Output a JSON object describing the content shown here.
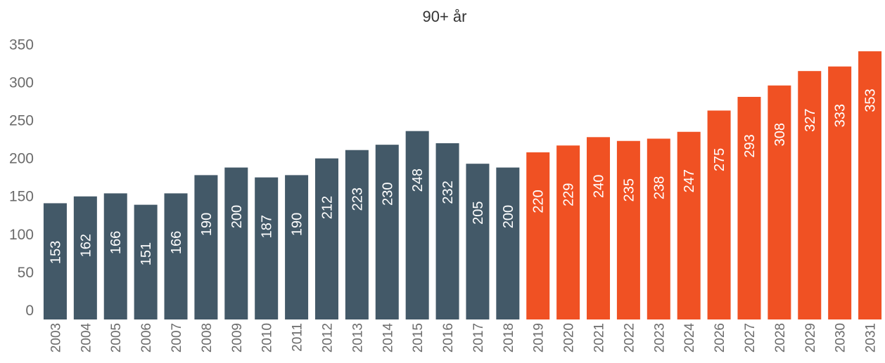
{
  "chart_data": {
    "type": "bar",
    "title": "90+ år",
    "xlabel": "",
    "ylabel": "",
    "ylim": [
      0,
      360
    ],
    "yticks": [
      0,
      50,
      100,
      150,
      200,
      250,
      300,
      350
    ],
    "grid": false,
    "categories": [
      "2003",
      "2004",
      "2005",
      "2006",
      "2007",
      "2008",
      "2009",
      "2010",
      "2011",
      "2012",
      "2013",
      "2014",
      "2015",
      "2016",
      "2017",
      "2018",
      "2019",
      "2020",
      "2021",
      "2022",
      "2023",
      "2024",
      "2026",
      "2027",
      "2028",
      "2029",
      "2030",
      "2031"
    ],
    "values": [
      153,
      162,
      166,
      151,
      166,
      190,
      200,
      187,
      190,
      212,
      223,
      230,
      248,
      232,
      205,
      200,
      220,
      229,
      240,
      235,
      238,
      247,
      275,
      293,
      308,
      327,
      333,
      353
    ],
    "series_colors": {
      "historical": "#435968",
      "projected": "#f05123"
    },
    "projected_from": "2019"
  }
}
